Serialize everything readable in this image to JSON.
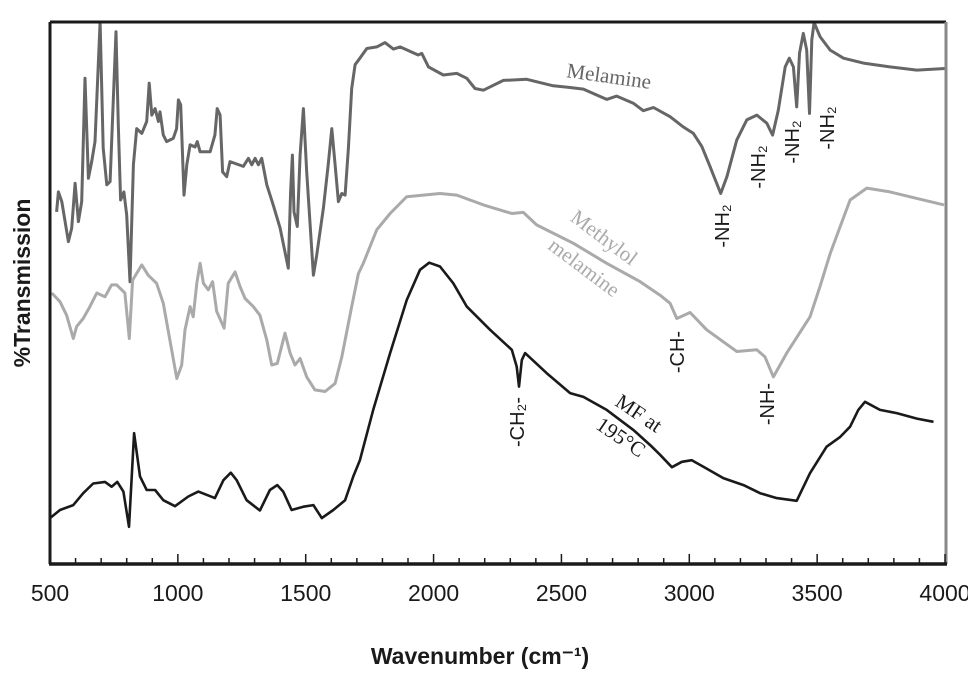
{
  "chart_data": {
    "type": "line",
    "title": "",
    "xlabel": "Wavenumber (cm⁻¹)",
    "ylabel": "%Transmission",
    "xlim": [
      500,
      4000
    ],
    "ylim": [
      0,
      100
    ],
    "x_ticks": [
      "500",
      "1000",
      "1500",
      "2000",
      "2500",
      "3000",
      "3500",
      "4000"
    ],
    "grid": false,
    "series": [
      {
        "name": "Melamine",
        "color": "#666666",
        "x": [
          526,
          533,
          546,
          572,
          585,
          598,
          611,
          624,
          637,
          650,
          663,
          676,
          696,
          708,
          722,
          735,
          745,
          758,
          767,
          776,
          789,
          800,
          813,
          826,
          839,
          859,
          878,
          888,
          898,
          911,
          924,
          930,
          943,
          956,
          982,
          995,
          1002,
          1011,
          1024,
          1035,
          1048,
          1067,
          1076,
          1087,
          1126,
          1145,
          1154,
          1165,
          1175,
          1191,
          1204,
          1256,
          1276,
          1289,
          1302,
          1315,
          1328,
          1348,
          1373,
          1400,
          1432,
          1441,
          1448,
          1454,
          1467,
          1478,
          1491,
          1504,
          1530,
          1543,
          1569,
          1588,
          1602,
          1615,
          1628,
          1641,
          1654,
          1667,
          1680,
          1693,
          1712,
          1739,
          1778,
          1810,
          1843,
          1869,
          1940,
          1954,
          1980,
          2038,
          2091,
          2130,
          2162,
          2195,
          2273,
          2319,
          2364,
          2468,
          2534,
          2586,
          2638,
          2677,
          2716,
          2781,
          2820,
          2860,
          2925,
          2977,
          3016,
          3049,
          3081,
          3123,
          3147,
          3186,
          3225,
          3264,
          3303,
          3326,
          3348,
          3375,
          3391,
          3407,
          3420,
          3431,
          3446,
          3459,
          3470,
          3479,
          3488,
          3511,
          3551,
          3603,
          3681,
          3785,
          3890,
          4000
        ],
        "y": [
          64.9,
          68.6,
          66.8,
          59.4,
          61.9,
          70.2,
          63.1,
          66.8,
          89.6,
          71.1,
          74.2,
          77.9,
          100,
          76.7,
          69.9,
          70.5,
          82.8,
          98.2,
          81.0,
          67.1,
          68.6,
          64.3,
          52.0,
          73.6,
          80.3,
          79.4,
          81.6,
          88.7,
          82.8,
          84.0,
          81.6,
          83.4,
          79.1,
          77.9,
          78.5,
          80.3,
          85.6,
          84.7,
          68.0,
          73.6,
          77.3,
          76.9,
          77.9,
          76.0,
          76.0,
          79.1,
          84.0,
          82.8,
          72.3,
          71.4,
          74.2,
          73.3,
          74.8,
          73.6,
          74.8,
          73.6,
          74.8,
          69.9,
          66.2,
          61.9,
          54.5,
          68.6,
          75.4,
          64.9,
          62.2,
          75.4,
          84.0,
          72.3,
          53.2,
          56.9,
          65.6,
          73.6,
          80.3,
          73.6,
          66.8,
          68.3,
          68.0,
          76.7,
          87.7,
          92.1,
          93.3,
          95.1,
          95.4,
          96.2,
          95.0,
          95.4,
          93.9,
          94.2,
          91.7,
          90.2,
          90.5,
          89.6,
          87.7,
          87.4,
          89.2,
          89.3,
          89.4,
          88.2,
          87.9,
          87.6,
          86.5,
          85.7,
          86.3,
          85.0,
          83.6,
          84.2,
          82.5,
          80.6,
          79.4,
          77.0,
          73.3,
          68.3,
          71.4,
          78.2,
          81.9,
          82.8,
          81.3,
          79.1,
          83.7,
          91.7,
          93.3,
          91.7,
          84.3,
          94.2,
          97.9,
          94.8,
          83.1,
          96.7,
          99.9,
          97.3,
          94.8,
          93.3,
          92.4,
          91.7,
          91.1,
          91.4
        ]
      },
      {
        "name": "Methylol melamine",
        "color": "#aaaaaa",
        "x": [
          507,
          539,
          565,
          591,
          604,
          630,
          656,
          683,
          715,
          741,
          761,
          793,
          810,
          823,
          859,
          884,
          917,
          943,
          969,
          996,
          1015,
          1028,
          1048,
          1060,
          1074,
          1087,
          1100,
          1119,
          1136,
          1152,
          1181,
          1197,
          1224,
          1243,
          1263,
          1295,
          1321,
          1348,
          1367,
          1389,
          1419,
          1439,
          1458,
          1478,
          1504,
          1536,
          1576,
          1615,
          1641,
          1680,
          1706,
          1725,
          1778,
          1830,
          1895,
          2025,
          2091,
          2195,
          2306,
          2351,
          2403,
          2547,
          2677,
          2808,
          2886,
          2925,
          2951,
          3003,
          3068,
          3186,
          3264,
          3296,
          3329,
          3381,
          3472,
          3511,
          3551,
          3590,
          3629,
          3694,
          3785,
          3890,
          3996
        ],
        "y": [
          49.9,
          48.3,
          45.8,
          41.5,
          43.7,
          45.2,
          47.4,
          49.9,
          49.2,
          51.4,
          51.4,
          49.9,
          41.5,
          52.3,
          55.1,
          53.2,
          51.7,
          48.0,
          41.2,
          34.1,
          36.6,
          43.1,
          47.4,
          45.5,
          51.7,
          55.4,
          51.7,
          50.5,
          52.0,
          46.5,
          43.4,
          51.7,
          53.8,
          51.1,
          48.9,
          47.4,
          45.8,
          41.2,
          36.6,
          36.9,
          42.5,
          38.8,
          36.6,
          37.8,
          34.4,
          32.0,
          31.7,
          33.2,
          38.1,
          47.4,
          53.5,
          55.4,
          61.6,
          64.6,
          67.7,
          68.3,
          68.0,
          66.2,
          64.6,
          64.8,
          62.5,
          59.1,
          55.4,
          52.0,
          49.5,
          48.0,
          45.2,
          46.3,
          43.1,
          39.1,
          39.4,
          38.1,
          34.4,
          38.8,
          45.5,
          51.1,
          57.2,
          62.2,
          67.1,
          69.3,
          68.6,
          67.4,
          66.2
        ]
      },
      {
        "name": "MF at 195°C",
        "color": "#1a1a1a",
        "x": [
          500,
          539,
          591,
          630,
          669,
          715,
          741,
          763,
          787,
          809,
          829,
          852,
          878,
          911,
          943,
          989,
          1041,
          1080,
          1145,
          1178,
          1207,
          1230,
          1269,
          1321,
          1360,
          1389,
          1412,
          1445,
          1491,
          1530,
          1563,
          1608,
          1654,
          1686,
          1712,
          1764,
          1830,
          1895,
          1947,
          1983,
          2025,
          2077,
          2130,
          2221,
          2306,
          2325,
          2334,
          2345,
          2358,
          2442,
          2534,
          2586,
          2677,
          2781,
          2847,
          2886,
          2932,
          2971,
          3010,
          3055,
          3133,
          3212,
          3277,
          3342,
          3420,
          3472,
          3537,
          3590,
          3629,
          3661,
          3687,
          3746,
          3811,
          3890,
          3955
        ],
        "y": [
          8.3,
          9.8,
          10.7,
          12.9,
          14.7,
          15.0,
          14.1,
          15.0,
          13.2,
          6.7,
          24.0,
          16.0,
          13.5,
          13.5,
          11.6,
          10.5,
          12.3,
          13.2,
          12.0,
          15.3,
          16.7,
          15.3,
          11.6,
          9.7,
          13.5,
          14.4,
          13.2,
          9.8,
          10.4,
          10.7,
          8.3,
          9.8,
          11.6,
          16.0,
          19.0,
          28.3,
          38.8,
          48.6,
          54.2,
          55.5,
          54.8,
          51.7,
          47.4,
          43.1,
          39.4,
          36.3,
          32.6,
          37.5,
          38.8,
          35.1,
          31.4,
          30.7,
          28.3,
          24.6,
          21.8,
          20.0,
          17.7,
          18.7,
          19.0,
          17.8,
          15.7,
          14.4,
          12.9,
          12.0,
          11.5,
          16.6,
          21.5,
          23.3,
          25.2,
          28.3,
          29.8,
          28.3,
          27.7,
          26.7,
          26.1
        ]
      }
    ],
    "annotations": {
      "melamine_label": "Melamine",
      "methylol_label_1": "Methylol",
      "methylol_label_2": "melamine",
      "mf_label_1": "MF at",
      "mf_label_2": "195°C",
      "nh2_1": "-NH₂",
      "nh2_2": "-NH₂",
      "nh2_3": "-NH₂",
      "nh2_4": "-NH₂",
      "ch": "-CH-",
      "nh": "-NH-",
      "ch2": "-CH₂-"
    }
  }
}
